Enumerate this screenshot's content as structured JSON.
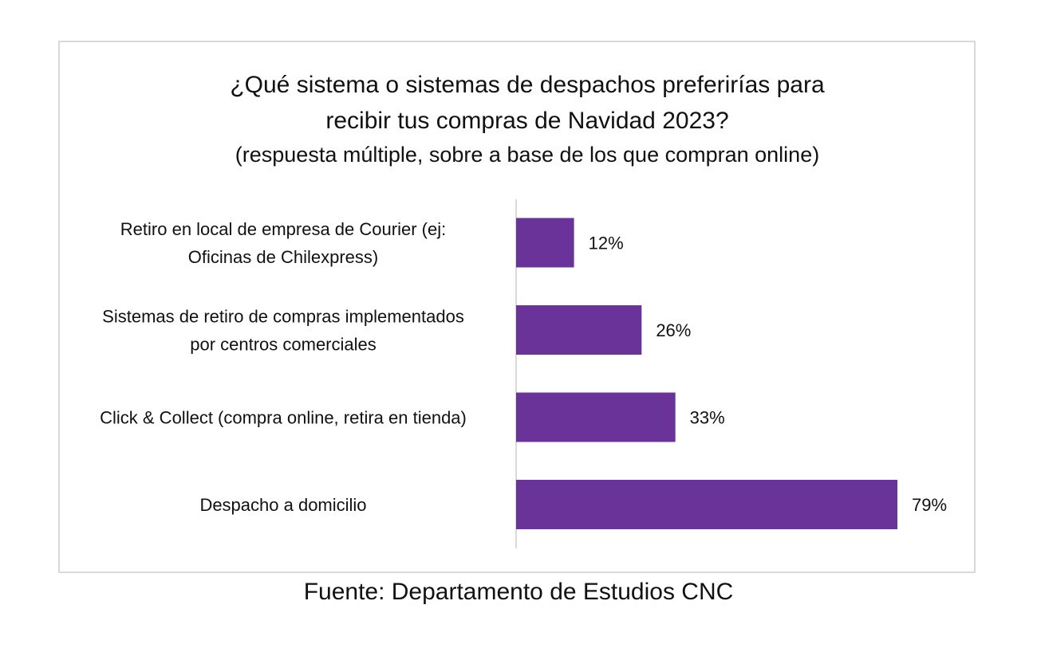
{
  "title_lines": [
    "¿Qué sistema o sistemas de despachos preferirías para",
    "recibir tus compras de Navidad 2023?"
  ],
  "subtitle": "(respuesta múltiple, sobre a base de los que compran online)",
  "source": "Fuente: Departamento de Estudios CNC",
  "colors": {
    "bar": "#6a3399",
    "axis": "#d9d9d9",
    "frame": "#d9d9d9"
  },
  "chart_data": {
    "type": "bar",
    "orientation": "horizontal",
    "categories": [
      [
        "Retiro en local de empresa de Courier (ej:",
        "Oficinas de Chilexpress)"
      ],
      [
        "Sistemas de retiro de compras implementados",
        "por centros comerciales"
      ],
      [
        "Click & Collect (compra online, retira en tienda)"
      ],
      [
        "Despacho a domicilio"
      ]
    ],
    "values": [
      12,
      26,
      33,
      79
    ],
    "value_labels": [
      "12%",
      "26%",
      "33%",
      "79%"
    ],
    "xlim": [
      0,
      100
    ],
    "grid": false,
    "legend": "none"
  }
}
